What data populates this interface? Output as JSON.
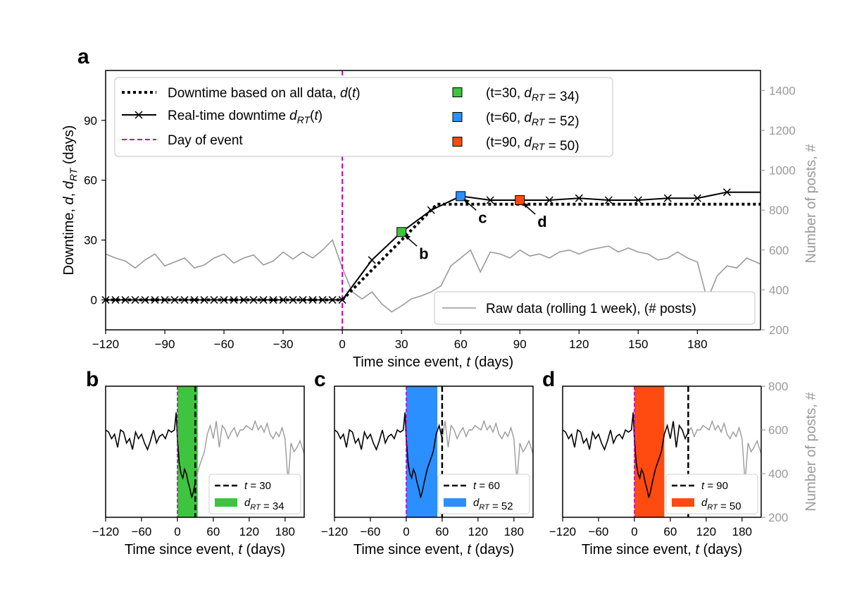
{
  "chart_data": [
    {
      "panel": "a",
      "type": "line",
      "xlabel": "Time since event, t (days)",
      "ylabel": "Downtime, d, d_RT (days)",
      "ylabel_right": "Number of posts, #",
      "xlim": [
        -120,
        212
      ],
      "ylim": [
        -15,
        115
      ],
      "ylim_right": [
        200,
        1500
      ],
      "xticks": [
        -120,
        -90,
        -60,
        -30,
        0,
        30,
        60,
        90,
        120,
        150,
        180
      ],
      "yticks": [
        0,
        30,
        60,
        90
      ],
      "yticks_right": [
        200,
        400,
        600,
        800,
        1000,
        1200,
        1400
      ],
      "event_day": 0,
      "series": [
        {
          "name": "Downtime based on all data, d(t)",
          "style": "dotted",
          "x": [
            -120,
            0,
            48,
            212
          ],
          "y": [
            0,
            0,
            48,
            48
          ]
        },
        {
          "name": "Real-time downtime d_RT(t)",
          "style": "solid-x",
          "x": [
            -120,
            -115,
            -110,
            -105,
            -100,
            -95,
            -90,
            -85,
            -80,
            -75,
            -70,
            -65,
            -60,
            -55,
            -50,
            -45,
            -40,
            -35,
            -30,
            -25,
            -20,
            -15,
            -10,
            -5,
            0,
            15,
            30,
            45,
            60,
            75,
            90,
            105,
            120,
            135,
            150,
            165,
            180,
            195,
            212
          ],
          "y": [
            0,
            0,
            0,
            0,
            0,
            0,
            0,
            0,
            0,
            0,
            0,
            0,
            0,
            0,
            0,
            0,
            0,
            0,
            0,
            0,
            0,
            0,
            0,
            0,
            0,
            20,
            34,
            45,
            52,
            50,
            50,
            50,
            51,
            50,
            50,
            51,
            51,
            54,
            54
          ]
        },
        {
          "name": "Raw data (rolling 1 week), (# posts)",
          "style": "gray",
          "axis": "right",
          "x": [
            -120,
            -115,
            -110,
            -105,
            -100,
            -95,
            -90,
            -85,
            -80,
            -75,
            -70,
            -65,
            -60,
            -55,
            -50,
            -45,
            -40,
            -35,
            -30,
            -25,
            -20,
            -15,
            -10,
            -5,
            0,
            5,
            10,
            15,
            20,
            25,
            30,
            35,
            40,
            45,
            50,
            55,
            60,
            65,
            70,
            75,
            80,
            85,
            90,
            95,
            100,
            105,
            110,
            115,
            120,
            125,
            130,
            135,
            140,
            145,
            150,
            155,
            160,
            165,
            170,
            175,
            180,
            185,
            190,
            195,
            200,
            205,
            212
          ],
          "y": [
            580,
            560,
            545,
            510,
            550,
            580,
            520,
            540,
            560,
            510,
            525,
            560,
            580,
            535,
            560,
            575,
            525,
            545,
            590,
            555,
            590,
            560,
            600,
            650,
            510,
            390,
            355,
            390,
            330,
            290,
            320,
            355,
            370,
            390,
            420,
            520,
            560,
            600,
            490,
            590,
            580,
            560,
            600,
            570,
            580,
            560,
            590,
            600,
            580,
            600,
            610,
            620,
            590,
            610,
            590,
            580,
            550,
            560,
            590,
            560,
            540,
            350,
            470,
            520,
            510,
            560,
            530
          ]
        }
      ],
      "markers": [
        {
          "t": 30,
          "d_rt": 34,
          "color": "#3ec43e",
          "label": "(t=30, d_RT = 34)",
          "annot": "b"
        },
        {
          "t": 60,
          "d_rt": 52,
          "color": "#2b8fff",
          "label": "(t=60, d_RT = 52)",
          "annot": "c"
        },
        {
          "t": 90,
          "d_rt": 50,
          "color": "#ff4a10",
          "label": "(t=90, d_RT = 50)",
          "annot": "d"
        }
      ],
      "legend_left": [
        "Downtime based on all data, d(t)",
        "Real-time downtime d_RT(t)",
        "Day of event"
      ],
      "legend_right": [
        "(t=30, d_RT = 34)",
        "(t=60, d_RT = 52)",
        "(t=90, d_RT = 50)"
      ],
      "legend_raw": "Raw data (rolling 1 week), (# posts)"
    },
    {
      "panel": "b",
      "type": "line",
      "xlabel": "Time since event, t (days)",
      "xticks": [
        -120,
        -60,
        0,
        60,
        120,
        180
      ],
      "cutoff": 30,
      "d_rt": 34,
      "color": "#3ec43e",
      "legend": [
        "t = 30",
        "d_RT = 34"
      ]
    },
    {
      "panel": "c",
      "type": "line",
      "xlabel": "Time since event, t (days)",
      "xticks": [
        -120,
        -60,
        0,
        60,
        120,
        180
      ],
      "cutoff": 60,
      "d_rt": 52,
      "color": "#2b8fff",
      "legend": [
        "t = 60",
        "d_RT = 52"
      ]
    },
    {
      "panel": "d",
      "type": "line",
      "xlabel": "Time since event, t (days)",
      "xticks": [
        -120,
        -60,
        0,
        60,
        120,
        180
      ],
      "cutoff": 90,
      "d_rt": 50,
      "color": "#ff4a10",
      "legend": [
        "t = 90",
        "d_RT = 50"
      ],
      "ylabel_right": "Number of posts, #",
      "yticks_right": [
        200,
        400,
        600,
        800
      ]
    }
  ],
  "panel_letters": [
    "a",
    "b",
    "c",
    "d"
  ],
  "small_series": {
    "x": [
      -120,
      -115,
      -110,
      -105,
      -100,
      -95,
      -90,
      -85,
      -80,
      -75,
      -70,
      -65,
      -60,
      -55,
      -50,
      -45,
      -40,
      -35,
      -30,
      -25,
      -20,
      -15,
      -10,
      -5,
      -2,
      0,
      3,
      6,
      9,
      12,
      15,
      18,
      21,
      24,
      27,
      30,
      35,
      40,
      45,
      50,
      55,
      60,
      65,
      70,
      75,
      80,
      85,
      90,
      95,
      100,
      105,
      110,
      115,
      120,
      125,
      130,
      135,
      140,
      145,
      150,
      155,
      160,
      165,
      170,
      175,
      180,
      185,
      190,
      195,
      200,
      205,
      212
    ],
    "y": [
      600,
      590,
      560,
      580,
      520,
      600,
      590,
      540,
      560,
      510,
      590,
      560,
      580,
      540,
      510,
      550,
      600,
      540,
      570,
      580,
      560,
      600,
      590,
      600,
      680,
      560,
      450,
      400,
      380,
      420,
      400,
      360,
      330,
      290,
      320,
      360,
      420,
      460,
      500,
      580,
      620,
      560,
      640,
      520,
      620,
      600,
      560,
      590,
      610,
      570,
      600,
      600,
      620,
      610,
      600,
      640,
      600,
      620,
      590,
      630,
      580,
      560,
      590,
      570,
      610,
      560,
      360,
      540,
      500,
      520,
      550,
      490
    ],
    "ylim": [
      200,
      800
    ]
  }
}
